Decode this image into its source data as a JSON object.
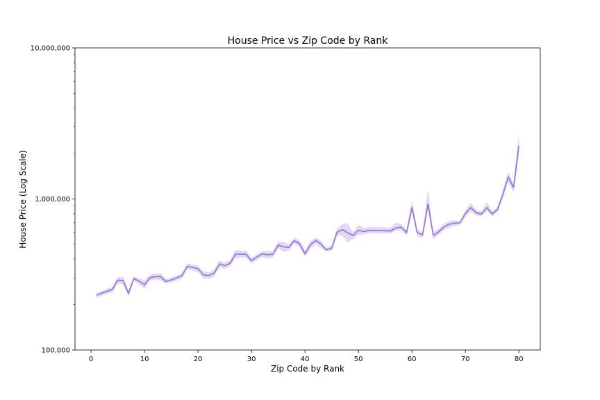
{
  "chart_data": {
    "type": "line",
    "title": "House Price vs Zip Code by Rank",
    "xlabel": "Zip Code by Rank",
    "ylabel": "House Price (Log Scale)",
    "yscale": "log",
    "xlim": [
      -3,
      84
    ],
    "ylim": [
      100000,
      10000000
    ],
    "x_ticks": [
      0,
      10,
      20,
      30,
      40,
      50,
      60,
      70,
      80
    ],
    "x_tick_labels": [
      "0",
      "10",
      "20",
      "30",
      "40",
      "50",
      "60",
      "70",
      "80"
    ],
    "y_ticks": [
      100000,
      1000000,
      10000000
    ],
    "y_tick_labels": [
      "100,000",
      "1,000,000",
      "10,000,000"
    ],
    "grid": false,
    "line_color": "#9370db",
    "band_color": "#c9b8ee",
    "x": [
      1,
      2,
      3,
      4,
      5,
      6,
      7,
      8,
      9,
      10,
      11,
      12,
      13,
      14,
      15,
      16,
      17,
      18,
      19,
      20,
      21,
      22,
      23,
      24,
      25,
      26,
      27,
      28,
      29,
      30,
      31,
      32,
      33,
      34,
      35,
      36,
      37,
      38,
      39,
      40,
      41,
      42,
      43,
      44,
      45,
      46,
      47,
      48,
      49,
      50,
      51,
      52,
      53,
      54,
      55,
      56,
      57,
      58,
      59,
      60,
      61,
      62,
      63,
      64,
      65,
      66,
      67,
      68,
      69,
      70,
      71,
      72,
      73,
      74,
      75,
      76,
      77,
      78,
      79,
      80
    ],
    "y": [
      230000,
      238000,
      245000,
      252000,
      290000,
      288000,
      237000,
      297000,
      285000,
      271000,
      301000,
      306000,
      306000,
      284000,
      291000,
      300000,
      310000,
      358000,
      352000,
      345000,
      315000,
      311000,
      322000,
      371000,
      362000,
      375000,
      431000,
      431000,
      430000,
      390000,
      412000,
      433000,
      427000,
      430000,
      495000,
      482000,
      478000,
      530000,
      505000,
      433000,
      497000,
      530000,
      502000,
      461000,
      472000,
      603000,
      626000,
      597000,
      573000,
      620000,
      608000,
      618000,
      618000,
      617000,
      616000,
      614000,
      642000,
      650000,
      598000,
      875000,
      597000,
      580000,
      925000,
      573000,
      606000,
      653000,
      681000,
      692000,
      695000,
      803000,
      876000,
      811000,
      795000,
      876000,
      798000,
      850000,
      1070000,
      1400000,
      1190000,
      2250000
    ],
    "y_lower": [
      222000,
      229000,
      235000,
      242000,
      276000,
      270000,
      226000,
      286000,
      272000,
      254000,
      288000,
      292000,
      289000,
      274000,
      280000,
      288000,
      297000,
      342000,
      336000,
      327000,
      297000,
      296000,
      305000,
      350000,
      345000,
      357000,
      405000,
      409000,
      410000,
      373000,
      394000,
      415000,
      402000,
      410000,
      470000,
      448000,
      455000,
      505000,
      478000,
      412000,
      468000,
      505000,
      472000,
      448000,
      450000,
      572000,
      572000,
      513000,
      545000,
      578000,
      584000,
      594000,
      594000,
      593000,
      592000,
      590000,
      615000,
      620000,
      570000,
      820000,
      567000,
      555000,
      860000,
      542000,
      578000,
      620000,
      648000,
      660000,
      675000,
      760000,
      822000,
      775000,
      765000,
      830000,
      768000,
      815000,
      1010000,
      1290000,
      1110000,
      1920000
    ],
    "y_upper": [
      238000,
      246000,
      255000,
      262000,
      305000,
      305000,
      248000,
      308000,
      298000,
      288000,
      314000,
      320000,
      323000,
      294000,
      302000,
      312000,
      323000,
      374000,
      368000,
      362000,
      333000,
      326000,
      340000,
      392000,
      380000,
      393000,
      458000,
      455000,
      452000,
      407000,
      430000,
      451000,
      452000,
      450000,
      520000,
      518000,
      502000,
      555000,
      532000,
      455000,
      526000,
      555000,
      532000,
      474000,
      494000,
      635000,
      680000,
      690000,
      601000,
      675000,
      640000,
      650000,
      650000,
      650000,
      649000,
      647000,
      695000,
      680000,
      626000,
      975000,
      627000,
      606000,
      1160000,
      605000,
      634000,
      686000,
      714000,
      724000,
      716000,
      840000,
      940000,
      848000,
      825000,
      952000,
      828000,
      885000,
      1135000,
      1520000,
      1270000,
      2700000
    ]
  }
}
